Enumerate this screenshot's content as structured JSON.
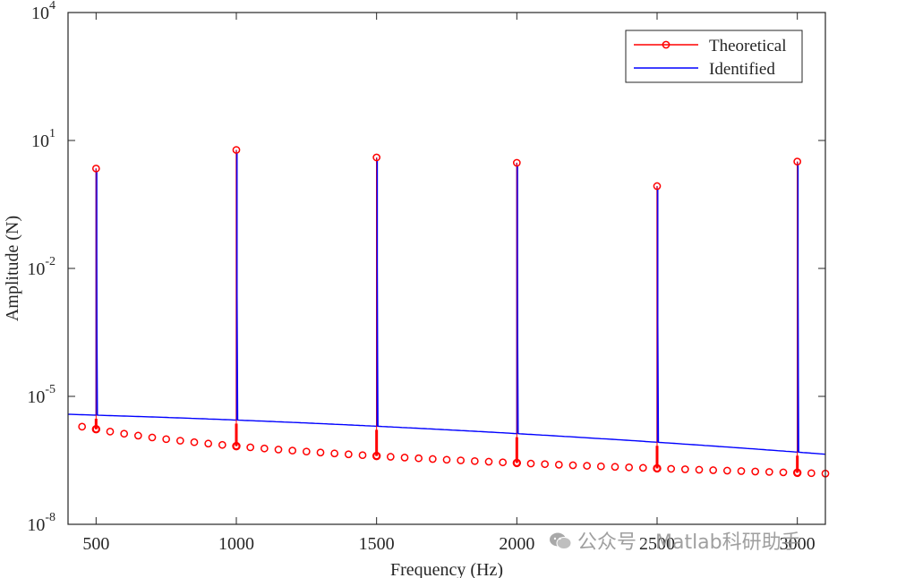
{
  "chart_data": {
    "type": "line",
    "title": "",
    "xlabel": "Frequency (Hz)",
    "ylabel": "Amplitude (N)",
    "xlim": [
      400,
      3100
    ],
    "ylim": [
      1e-08,
      10000.0
    ],
    "yscale": "log",
    "xticks": [
      500,
      1000,
      1500,
      2000,
      2500,
      3000
    ],
    "yticks": [
      {
        "value": 1e-08,
        "base": "10",
        "exp": "-8"
      },
      {
        "value": 1e-05,
        "base": "10",
        "exp": "-5"
      },
      {
        "value": 0.01,
        "base": "10",
        "exp": "-2"
      },
      {
        "value": 10,
        "base": "10",
        "exp": "1"
      },
      {
        "value": 10000.0,
        "base": "10",
        "exp": "4"
      }
    ],
    "legend": {
      "location": "top-right",
      "entries": [
        "Theoretical",
        "Identified"
      ]
    },
    "series": [
      {
        "name": "Theoretical",
        "color": "#ff0000",
        "marker": "circle",
        "peaks": [
          {
            "x": 500,
            "y": 2.2
          },
          {
            "x": 1000,
            "y": 6.0
          },
          {
            "x": 1500,
            "y": 4.0
          },
          {
            "x": 2000,
            "y": 3.0
          },
          {
            "x": 2500,
            "y": 0.85
          },
          {
            "x": 3000,
            "y": 3.2
          }
        ],
        "floor": {
          "x_start": 450,
          "x_end": 3100,
          "x_step": 50,
          "y_at_450": 1.95e-06,
          "y_at_3100": 1.55e-07
        }
      },
      {
        "name": "Identified",
        "color": "#0000ff",
        "peaks": [
          {
            "x": 500,
            "y": 2.2
          },
          {
            "x": 1000,
            "y": 6.0
          },
          {
            "x": 1500,
            "y": 4.0
          },
          {
            "x": 2000,
            "y": 3.0
          },
          {
            "x": 2500,
            "y": 0.85
          },
          {
            "x": 3000,
            "y": 3.2
          }
        ],
        "baseline": {
          "y_at_400": 3.8e-06,
          "y_at_3100": 4.4e-07
        }
      }
    ]
  },
  "watermark": {
    "text": "公众号 · Matlab科研助手"
  }
}
